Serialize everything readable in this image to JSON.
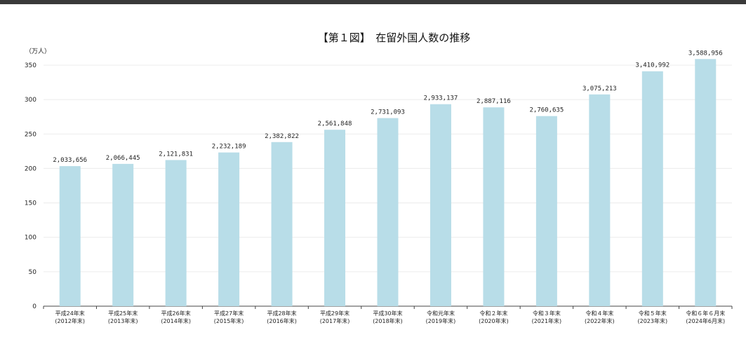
{
  "chart_data": {
    "type": "bar",
    "title": "【第１図】　在留外国人数の推移",
    "ylabel": "（万人）",
    "ylim": [
      0,
      350
    ],
    "yticks": [
      0,
      50,
      100,
      150,
      200,
      250,
      300,
      350
    ],
    "grid": true,
    "bar_color": "#b8dde8",
    "categories": [
      [
        "平成24年末",
        "(2012年末)"
      ],
      [
        "平成25年末",
        "(2013年末)"
      ],
      [
        "平成26年末",
        "(2014年末)"
      ],
      [
        "平成27年末",
        "(2015年末)"
      ],
      [
        "平成28年末",
        "(2016年末)"
      ],
      [
        "平成29年末",
        "(2017年末)"
      ],
      [
        "平成30年末",
        "(2018年末)"
      ],
      [
        "令和元年末",
        "(2019年末)"
      ],
      [
        "令和２年末",
        "(2020年末)"
      ],
      [
        "令和３年末",
        "(2021年末)"
      ],
      [
        "令和４年末",
        "(2022年末)"
      ],
      [
        "令和５年末",
        "(2023年末)"
      ],
      [
        "令和６年６月末",
        "(2024年6月末)"
      ]
    ],
    "values": [
      2033656,
      2066445,
      2121831,
      2232189,
      2382822,
      2561848,
      2731093,
      2933137,
      2887116,
      2760635,
      3075213,
      3410992,
      3588956
    ],
    "value_labels": [
      "2,033,656",
      "2,066,445",
      "2,121,831",
      "2,232,189",
      "2,382,822",
      "2,561,848",
      "2,731,093",
      "2,933,137",
      "2,887,116",
      "2,760,635",
      "3,075,213",
      "3,410,992",
      "3,588,956"
    ]
  }
}
